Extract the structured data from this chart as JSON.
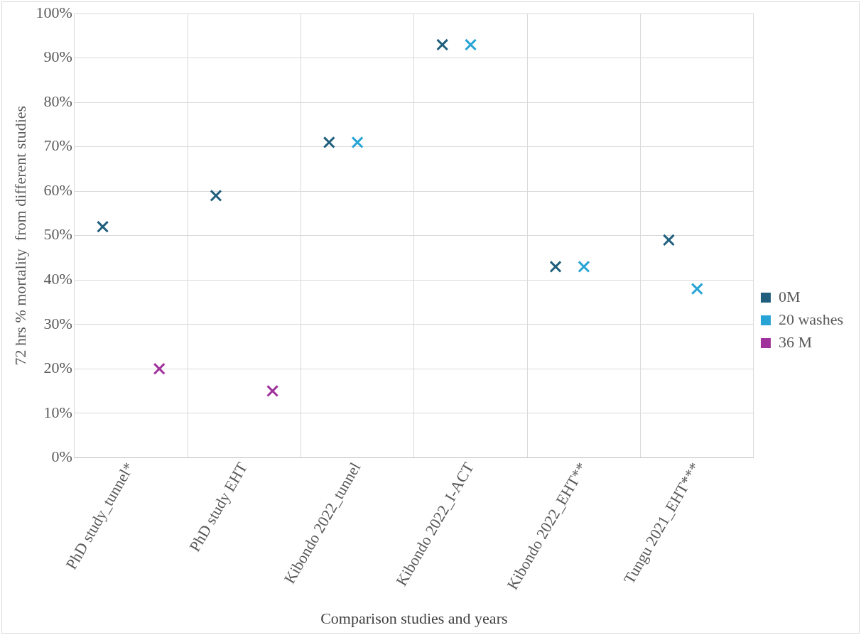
{
  "chart_data": {
    "type": "scatter",
    "xlabel": "Comparison studies and years",
    "ylabel": "72 hrs % mortality  from different studies",
    "categories": [
      "PhD study_tunnel*",
      "PhD study EHT",
      "Kibondo 2022_tunnel",
      "Kibondo 2022_I-ACT",
      "Kibondo 2022_EHT**",
      "Tungu 2021_EHT***"
    ],
    "series": [
      {
        "name": "0M",
        "color": "#1f5f7d",
        "values": [
          52,
          59,
          71,
          93,
          43,
          49
        ]
      },
      {
        "name": "20 washes",
        "color": "#27a3d6",
        "values": [
          null,
          null,
          71,
          93,
          43,
          38
        ]
      },
      {
        "name": "36 M",
        "color": "#a0329c",
        "values": [
          20,
          15,
          null,
          null,
          null,
          null
        ]
      }
    ],
    "ylim": [
      0,
      100
    ],
    "yticks": [
      {
        "value": 0,
        "label": "0%"
      },
      {
        "value": 10,
        "label": "10%"
      },
      {
        "value": 20,
        "label": "20%"
      },
      {
        "value": 30,
        "label": "30%"
      },
      {
        "value": 40,
        "label": "40%"
      },
      {
        "value": 50,
        "label": "50%"
      },
      {
        "value": 60,
        "label": "60%"
      },
      {
        "value": 70,
        "label": "70%"
      },
      {
        "value": 80,
        "label": "80%"
      },
      {
        "value": 90,
        "label": "90%"
      },
      {
        "value": 100,
        "label": "100%"
      }
    ],
    "grid": true,
    "legend": "right",
    "marker": "cross"
  }
}
